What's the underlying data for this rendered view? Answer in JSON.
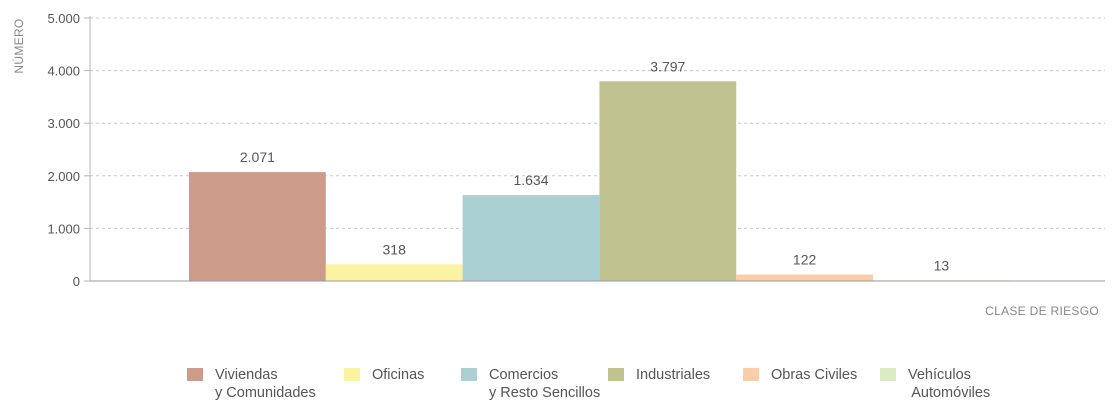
{
  "chart_data": {
    "type": "bar",
    "categories": [
      "Viviendas\ny Comunidades",
      "Oficinas",
      "Comercios\ny Resto Sencillos",
      "Industriales",
      "Obras Civiles",
      "Vehículos\n Automóviles"
    ],
    "values": [
      2071,
      318,
      1634,
      3797,
      122,
      13
    ],
    "value_labels": [
      "2.071",
      "318",
      "1.634",
      "3.797",
      "122",
      "13"
    ],
    "colors": [
      "#cc9b89",
      "#fbf2a2",
      "#abd0d3",
      "#c0c38f",
      "#f9cda7",
      "#dcebc3"
    ],
    "ylabel": "NÚMERO",
    "xlabel": "CLASE DE RIESGO",
    "ylim": [
      0,
      5000
    ],
    "yticks": [
      0,
      1000,
      2000,
      3000,
      4000,
      5000
    ],
    "ytick_labels": [
      "0",
      "1.000",
      "2.000",
      "3.000",
      "4.000",
      "5.000"
    ],
    "grid": true,
    "legend": "bottom"
  }
}
